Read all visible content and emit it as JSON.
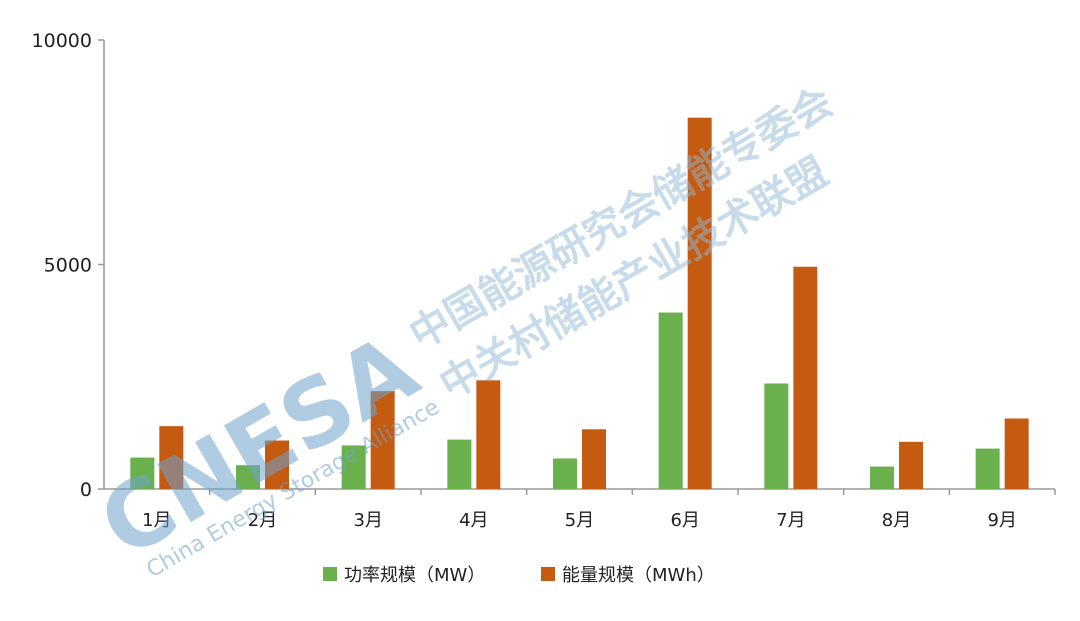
{
  "chart_data": {
    "type": "bar",
    "categories": [
      "1月",
      "2月",
      "3月",
      "4月",
      "5月",
      "6月",
      "7月",
      "8月",
      "9月"
    ],
    "series": [
      {
        "name": "功率规模（MW）",
        "color": "#6ab04c",
        "values": [
          700,
          530,
          970,
          1100,
          680,
          3930,
          2350,
          500,
          900
        ]
      },
      {
        "name": "能量规模（MWh）",
        "color": "#c55a11",
        "values": [
          1400,
          1080,
          2180,
          2420,
          1330,
          8270,
          4950,
          1050,
          1570
        ]
      }
    ],
    "ylim": [
      0,
      10000
    ],
    "yticks": [
      0,
      5000,
      10000
    ],
    "grid": false,
    "legend_position": "bottom"
  },
  "watermark": {
    "logo": "CNESA",
    "subtitle": "China Energy Storage Alliance",
    "line1": "中国能源研究会储能专委会",
    "line2": "中关村储能产业技术联盟"
  }
}
